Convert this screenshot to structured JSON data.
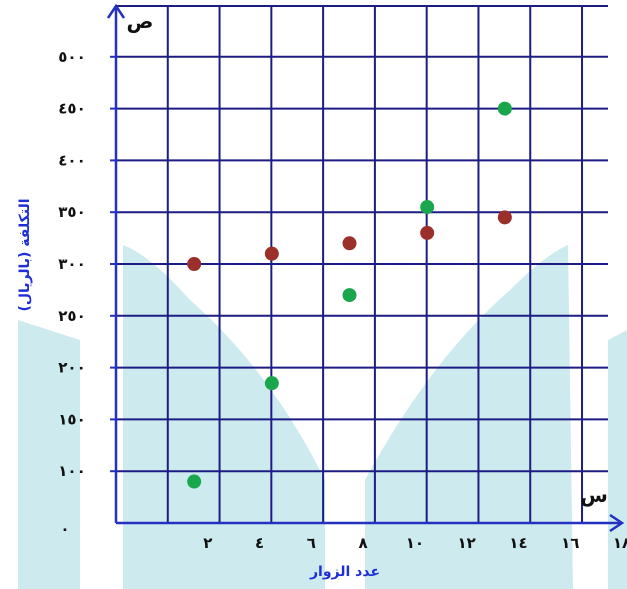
{
  "chart_data": {
    "type": "scatter",
    "xlabel": "عدد الزوار",
    "ylabel": "التكلفة (بالريال)",
    "x_axis_name": "س",
    "y_axis_name": "ص",
    "origin_label": "٠",
    "xlim": [
      0,
      18
    ],
    "ylim": [
      50,
      500
    ],
    "x_ticks": [
      {
        "value": 2,
        "label": "٢"
      },
      {
        "value": 4,
        "label": "٤"
      },
      {
        "value": 6,
        "label": "٦"
      },
      {
        "value": 8,
        "label": "٨"
      },
      {
        "value": 10,
        "label": "١٠"
      },
      {
        "value": 12,
        "label": "١٢"
      },
      {
        "value": 14,
        "label": "١٤"
      },
      {
        "value": 16,
        "label": "١٦"
      },
      {
        "value": 18,
        "label": "١٨"
      }
    ],
    "y_ticks": [
      {
        "value": 100,
        "label": "١٠٠"
      },
      {
        "value": 150,
        "label": "١٥٠"
      },
      {
        "value": 200,
        "label": "٢٠٠"
      },
      {
        "value": 250,
        "label": "٢٥٠"
      },
      {
        "value": 300,
        "label": "٣٠٠"
      },
      {
        "value": 350,
        "label": "٣٥٠"
      },
      {
        "value": 400,
        "label": "٤٠٠"
      },
      {
        "value": 450,
        "label": "٤٥٠"
      },
      {
        "value": 500,
        "label": "٥٠٠"
      }
    ],
    "grid": true,
    "series": [
      {
        "color": "#1aa64c",
        "points": [
          [
            3,
            90
          ],
          [
            6,
            185
          ],
          [
            9,
            270
          ],
          [
            12,
            355
          ],
          [
            15,
            450
          ]
        ]
      },
      {
        "color": "#9b2f2a",
        "points": [
          [
            3,
            300
          ],
          [
            6,
            310
          ],
          [
            9,
            320
          ],
          [
            12,
            330
          ],
          [
            15,
            345
          ]
        ]
      }
    ],
    "colors": {
      "grid": "#1c1c84",
      "axis": "#2430c0",
      "background_shape": "#cdebee"
    }
  }
}
